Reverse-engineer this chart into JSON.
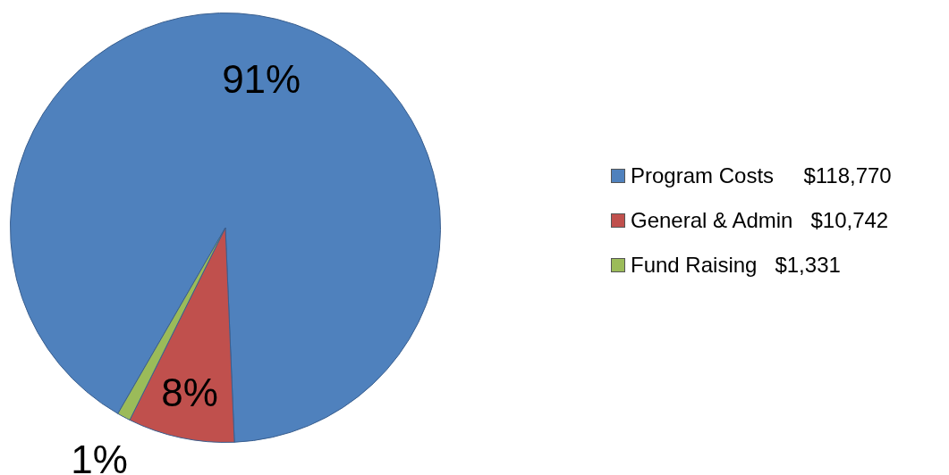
{
  "chart_data": {
    "type": "pie",
    "categories": [
      "Program Costs     $118,770",
      "General & Admin   $10,742",
      "Fund Raising   $1,331"
    ],
    "values": [
      91,
      8,
      1
    ],
    "colors": [
      "#4f81bd",
      "#c0504d",
      "#9bbb59"
    ],
    "value_labels": [
      "91%",
      "8%",
      "1%"
    ],
    "legend": "right"
  }
}
